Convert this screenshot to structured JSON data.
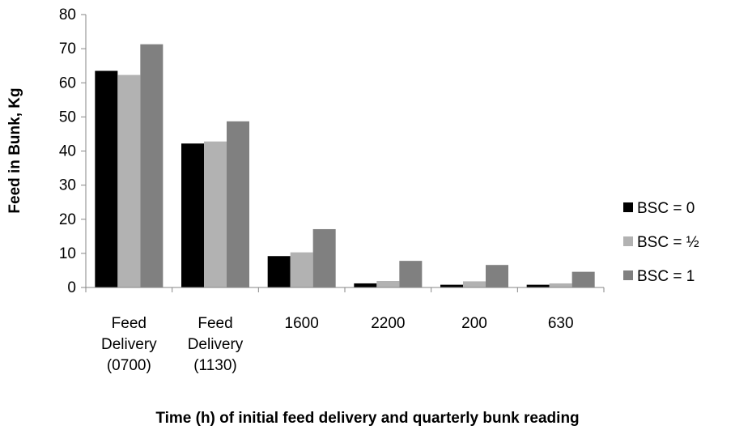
{
  "chart_data": {
    "type": "bar",
    "categories": [
      [
        "Feed",
        "Delivery",
        "(0700)"
      ],
      [
        "Feed",
        "Delivery",
        "(1130)"
      ],
      [
        "1600"
      ],
      [
        "2200"
      ],
      [
        "200"
      ],
      [
        "630"
      ]
    ],
    "series": [
      {
        "name": "BSC = 0",
        "color": "#000000",
        "values": [
          63.5,
          42.2,
          9.2,
          1.2,
          0.8,
          0.8
        ]
      },
      {
        "name": "BSC = ½",
        "color": "#b2b2b2",
        "values": [
          62.3,
          42.8,
          10.3,
          1.9,
          1.8,
          1.2
        ]
      },
      {
        "name": "BSC = 1",
        "color": "#808080",
        "values": [
          71.3,
          48.7,
          17.1,
          7.8,
          6.6,
          4.6
        ]
      }
    ],
    "title": "",
    "xlabel": "Time (h) of initial feed delivery and quarterly bunk reading",
    "ylabel": "Feed in Bunk, Kg",
    "ylim": [
      0,
      80
    ],
    "yticks": [
      0,
      10,
      20,
      30,
      40,
      50,
      60,
      70,
      80
    ],
    "grid": false,
    "legend_position": "right"
  }
}
